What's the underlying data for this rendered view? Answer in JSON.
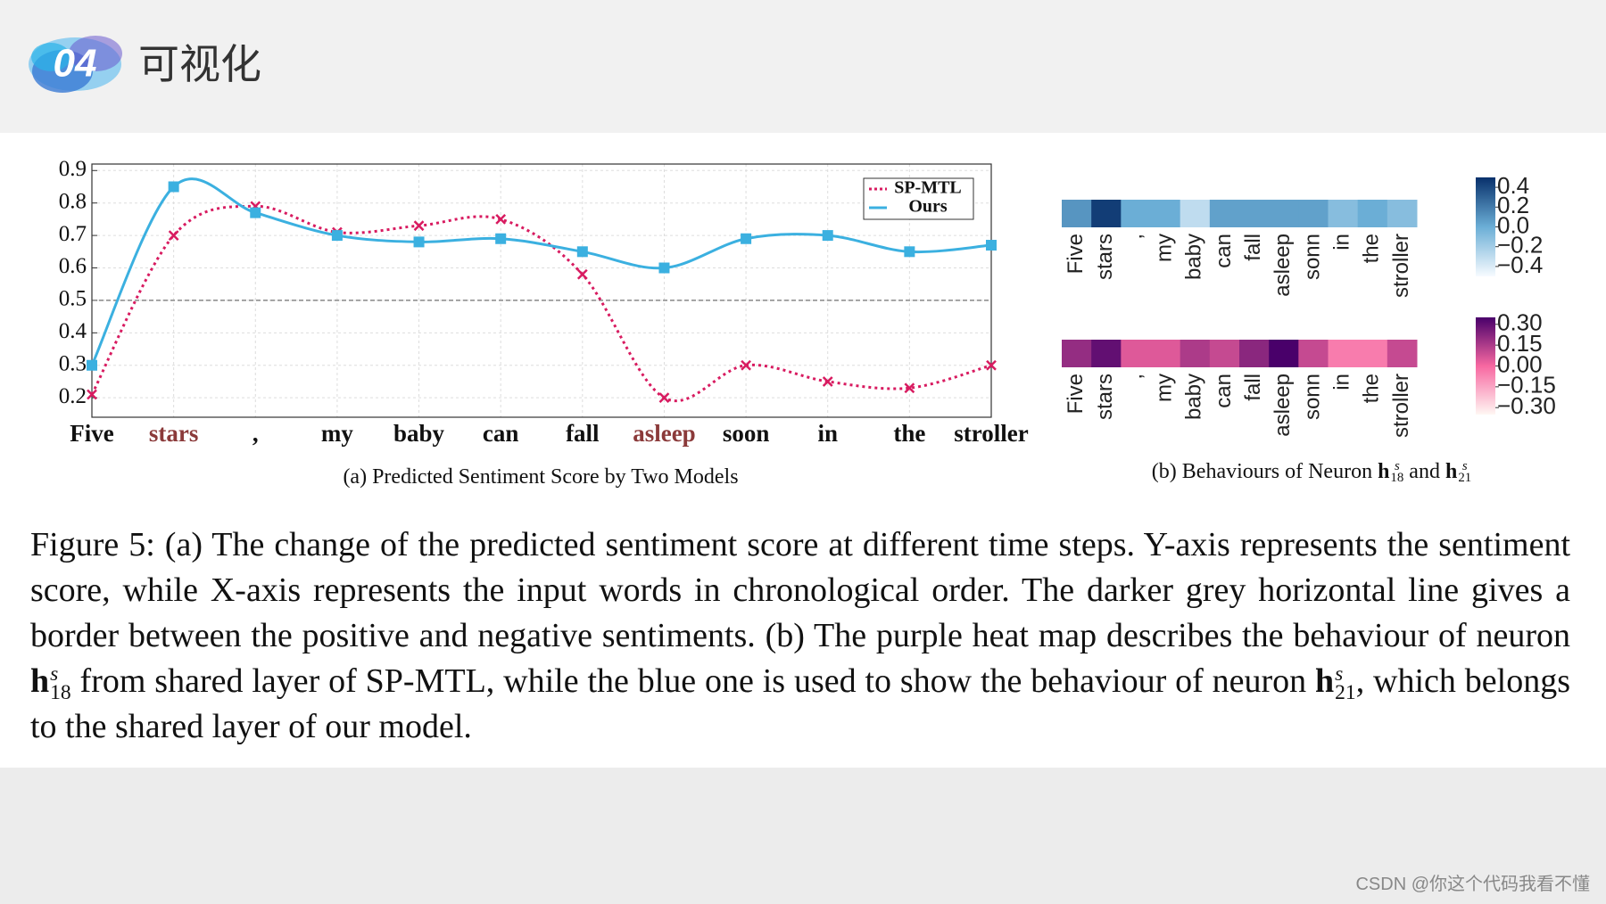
{
  "header": {
    "badge": "04",
    "title": "可视化"
  },
  "chart_data": [
    {
      "type": "line",
      "subtitle": "(a) Predicted Sentiment Score by Two Models",
      "categories": [
        "Five",
        "stars",
        ",",
        "my",
        "baby",
        "can",
        "fall",
        "asleep",
        "soon",
        "in",
        "the",
        "stroller"
      ],
      "category_colors": [
        "#111111",
        "#8b3a3a",
        "#111111",
        "#111111",
        "#111111",
        "#111111",
        "#111111",
        "#8b3a3a",
        "#111111",
        "#111111",
        "#111111",
        "#111111"
      ],
      "series": [
        {
          "name": "SP-MTL",
          "color": "#d81b60",
          "style": "dotted",
          "marker": "x",
          "values": [
            0.21,
            0.7,
            0.79,
            0.71,
            0.73,
            0.75,
            0.58,
            0.2,
            0.3,
            0.25,
            0.23,
            0.3
          ]
        },
        {
          "name": "Ours",
          "color": "#3bb0e0",
          "style": "solid",
          "marker": "square",
          "values": [
            0.3,
            0.85,
            0.77,
            0.7,
            0.68,
            0.69,
            0.65,
            0.6,
            0.69,
            0.7,
            0.65,
            0.67
          ]
        }
      ],
      "ylim": [
        0.14,
        0.92
      ],
      "yticks": [
        0.2,
        0.3,
        0.4,
        0.5,
        0.6,
        0.7,
        0.8,
        0.9
      ],
      "grid": true,
      "reference_line": 0.5,
      "legend": "upper right"
    },
    {
      "type": "heatmap",
      "subtitle": [
        "(b) Behaviours of Neuron ",
        {
          "base": "h",
          "sup": "s",
          "sub": "18"
        },
        " and ",
        {
          "base": "h",
          "sup": "s",
          "sub": "21"
        }
      ],
      "rows": [
        {
          "categories": [
            "Five",
            "stars",
            ",",
            "my",
            "baby",
            "can",
            "fall",
            "asleep",
            "sonn",
            "in",
            "the",
            "stroller"
          ],
          "values": [
            0.1,
            0.45,
            0.0,
            0.0,
            -0.3,
            0.05,
            0.05,
            0.05,
            0.05,
            -0.1,
            0.0,
            -0.1
          ],
          "colormap": [
            "#f7fbff",
            "#6baed6",
            "#08306b"
          ],
          "clim": [
            -0.5,
            0.5
          ],
          "ticks": [
            {
              "value": 0.4,
              "label": "0.4"
            },
            {
              "value": 0.2,
              "label": "0.2"
            },
            {
              "value": 0.0,
              "label": "0.0"
            },
            {
              "value": -0.2,
              "label": "−0.2"
            },
            {
              "value": -0.4,
              "label": "−0.4"
            }
          ]
        },
        {
          "categories": [
            "Five",
            "stars",
            ",",
            "my",
            "baby",
            "can",
            "fall",
            "asleep",
            "sonn",
            "in",
            "the",
            "stroller"
          ],
          "values": [
            0.2,
            0.3,
            0.05,
            0.05,
            0.15,
            0.1,
            0.22,
            0.35,
            0.1,
            -0.05,
            -0.05,
            0.1
          ],
          "colormap": [
            "#fff7f3",
            "#f768a1",
            "#49006a"
          ],
          "clim": [
            -0.35,
            0.35
          ],
          "ticks": [
            {
              "value": 0.3,
              "label": "0.30"
            },
            {
              "value": 0.15,
              "label": "0.15"
            },
            {
              "value": 0.0,
              "label": "0.00"
            },
            {
              "value": -0.15,
              "label": "−0.15"
            },
            {
              "value": -0.3,
              "label": "−0.30"
            }
          ]
        }
      ]
    }
  ],
  "caption": [
    "Figure 5: (a) The change of the predicted sentiment score at different time steps. Y-axis represents the sentiment score, while X-axis represents the input words in chronological order. The darker grey horizontal line gives a border between the positive and negative sentiments. (b) The purple heat map describes the behaviour of neuron ",
    {
      "base": "h",
      "sup": "s",
      "sub": "18"
    },
    " from shared layer of SP-MTL, while the blue one is used to show the behaviour of neuron ",
    {
      "base": "h",
      "sup": "s",
      "sub": "21"
    },
    ", which belongs to the shared layer of our model."
  ],
  "watermark": "CSDN @你这个代码我看不懂"
}
